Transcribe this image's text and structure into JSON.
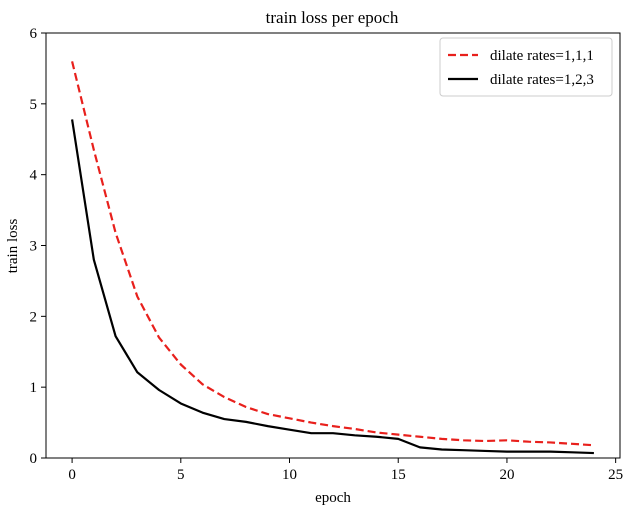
{
  "chart_data": {
    "type": "line",
    "title": "train loss per epoch",
    "xlabel": "epoch",
    "ylabel": "train loss",
    "xlim": [
      -1.2,
      25.2
    ],
    "ylim": [
      0,
      6
    ],
    "xticks": [
      0,
      5,
      10,
      15,
      20,
      25
    ],
    "yticks": [
      0,
      1,
      2,
      3,
      4,
      5,
      6
    ],
    "grid": false,
    "legend_position": "top-right",
    "series": [
      {
        "name": "dilate rates=1,1,1",
        "color": "#e8201c",
        "linestyle": "dashed",
        "x": [
          0,
          1,
          2,
          3,
          4,
          5,
          6,
          7,
          8,
          9,
          10,
          11,
          12,
          13,
          14,
          15,
          16,
          17,
          18,
          19,
          20,
          21,
          22,
          23,
          24
        ],
        "y": [
          5.6,
          4.35,
          3.18,
          2.28,
          1.7,
          1.32,
          1.04,
          0.86,
          0.72,
          0.62,
          0.56,
          0.5,
          0.45,
          0.41,
          0.36,
          0.33,
          0.3,
          0.27,
          0.25,
          0.24,
          0.25,
          0.23,
          0.22,
          0.2,
          0.18
        ]
      },
      {
        "name": "dilate rates=1,2,3",
        "color": "#000000",
        "linestyle": "solid",
        "x": [
          0,
          1,
          2,
          3,
          4,
          5,
          6,
          7,
          8,
          9,
          10,
          11,
          12,
          13,
          14,
          15,
          16,
          17,
          18,
          19,
          20,
          21,
          22,
          23,
          24
        ],
        "y": [
          4.78,
          2.8,
          1.72,
          1.21,
          0.96,
          0.77,
          0.64,
          0.55,
          0.51,
          0.45,
          0.4,
          0.35,
          0.35,
          0.32,
          0.3,
          0.27,
          0.15,
          0.12,
          0.11,
          0.1,
          0.09,
          0.09,
          0.09,
          0.08,
          0.07
        ]
      }
    ]
  }
}
